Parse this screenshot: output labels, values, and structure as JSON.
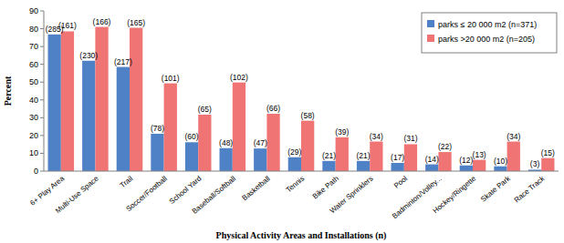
{
  "chart_data": {
    "type": "bar",
    "y_label": "Percent",
    "x_label": "Physical Activity Areas and Installations (n)",
    "categories": [
      "6+ Play Area",
      "Multi-Use Space",
      "Trail",
      "Soccer/Football",
      "School Yard",
      "Baseball/Softball",
      "Basketball",
      "Tennis",
      "Bike Path",
      "Water Sprinklers",
      "Pool",
      "Badminton/Volley...",
      "Hockey/Ringette",
      "Skate Park",
      "Race Track"
    ],
    "series": [
      {
        "name": "parks ≤ 20 000 m2 (n=371)",
        "color": "#4f81c7",
        "values": [
          76.8,
          62.0,
          58.5,
          21.0,
          16.2,
          12.9,
          12.7,
          7.8,
          5.7,
          5.7,
          4.6,
          3.8,
          3.2,
          2.7,
          0.8
        ],
        "count_labels": [
          "(285)",
          "(230)",
          "(217)",
          "(78)",
          "(60)",
          "(48)",
          "(47)",
          "(29)",
          "(21)",
          "(21)",
          "(17)",
          "(14)",
          "(12)",
          "(10)",
          "(3)"
        ]
      },
      {
        "name": "parks >20 000 m2 (n=205)",
        "color": "#f07474",
        "values": [
          78.5,
          81.0,
          80.5,
          49.3,
          31.7,
          49.8,
          32.2,
          28.3,
          19.0,
          16.6,
          15.1,
          10.7,
          6.3,
          16.6,
          7.3
        ],
        "count_labels": [
          "(161)",
          "(166)",
          "(165)",
          "(101)",
          "(65)",
          "(102)",
          "(66)",
          "(58)",
          "(39)",
          "(34)",
          "(31)",
          "(22)",
          "(13)",
          "(34)",
          "(15)"
        ]
      }
    ],
    "ylim": [
      0,
      90
    ],
    "yticks": [
      0,
      10,
      20,
      30,
      40,
      50,
      60,
      70,
      80,
      90
    ],
    "grid": false,
    "legend": "top-right"
  }
}
